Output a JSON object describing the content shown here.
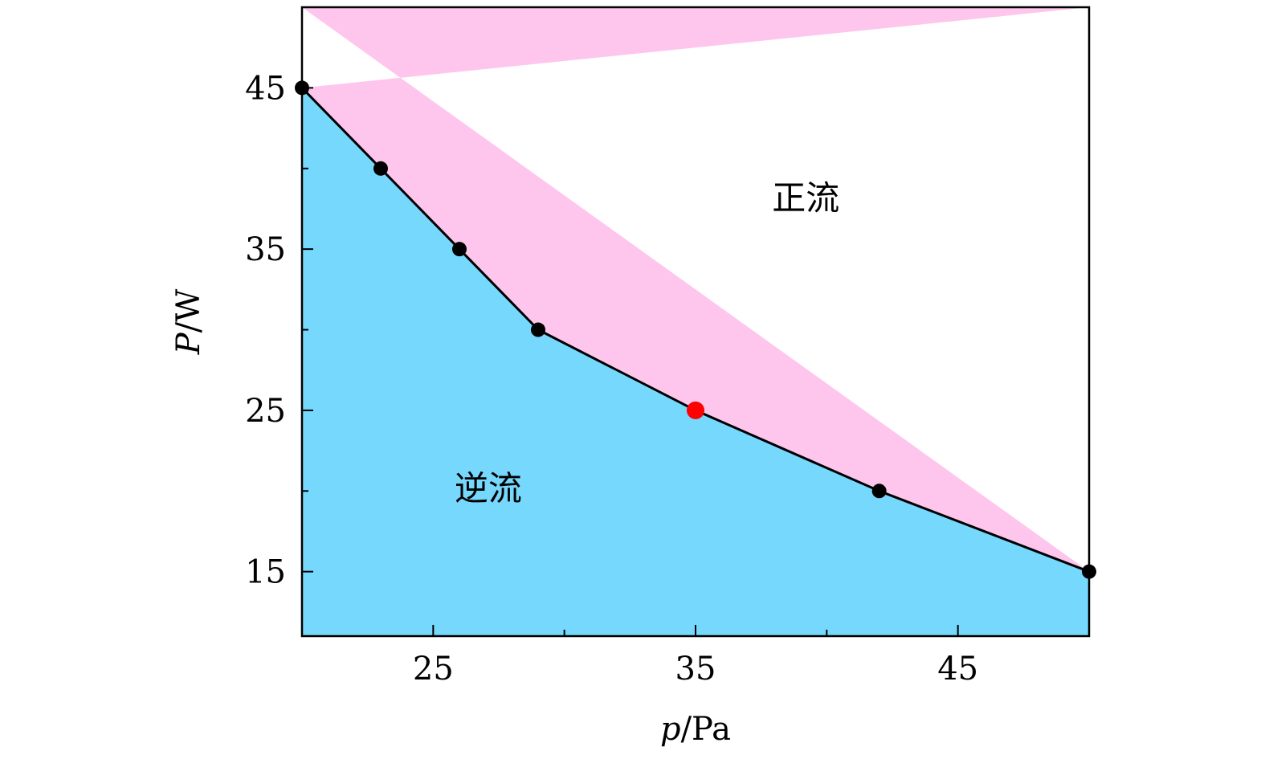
{
  "chart_data": {
    "type": "line",
    "xlabel": {
      "symbol": "p",
      "unit": "/Pa"
    },
    "ylabel": {
      "symbol": "P",
      "unit": "/W"
    },
    "xlim": [
      20,
      50
    ],
    "ylim": [
      11,
      50
    ],
    "xticks": [
      25,
      35,
      45
    ],
    "xminor": [
      30,
      40
    ],
    "yticks": [
      15,
      25,
      35,
      45
    ],
    "yminor": [
      20,
      30,
      40
    ],
    "grid": false,
    "series": [
      {
        "x": [
          20,
          23,
          26,
          29,
          35,
          42,
          50
        ],
        "y": [
          45,
          40,
          35,
          30,
          25,
          20,
          15
        ],
        "highlight_index": 4
      }
    ],
    "regions": [
      {
        "label": "正流",
        "color": "#fec6ec",
        "side": "above",
        "at": [
          39.2,
          38
        ]
      },
      {
        "label": "逆流",
        "color": "#76d8fc",
        "side": "below",
        "at": [
          27.1,
          20
        ]
      }
    ],
    "colors": {
      "line": "#000000",
      "point": "#000000",
      "highlight": "#ff0000"
    }
  }
}
